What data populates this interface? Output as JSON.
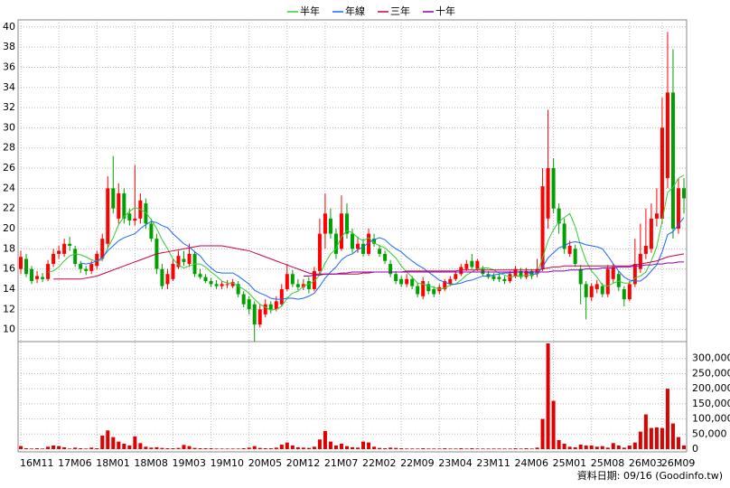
{
  "chart_data": {
    "type": "candlestick",
    "legend": [
      "半年",
      "年線",
      "三年",
      "十年"
    ],
    "source_note": "資料日期: 09/16 (Goodinfo.tw)",
    "categories": [
      "16M11",
      null,
      null,
      null,
      null,
      null,
      null,
      "17M06",
      null,
      null,
      null,
      null,
      null,
      null,
      "18M01",
      null,
      null,
      null,
      null,
      null,
      null,
      "18M08",
      null,
      null,
      null,
      null,
      null,
      null,
      "19M03",
      null,
      null,
      null,
      null,
      null,
      null,
      "19M10",
      null,
      null,
      null,
      null,
      null,
      null,
      "20M05",
      null,
      null,
      null,
      null,
      null,
      null,
      "20M12",
      null,
      null,
      null,
      null,
      null,
      null,
      "21M07",
      null,
      null,
      null,
      null,
      null,
      null,
      "22M02",
      null,
      null,
      null,
      null,
      null,
      null,
      "22M09",
      null,
      null,
      null,
      null,
      null,
      null,
      "23M04",
      null,
      null,
      null,
      null,
      null,
      null,
      "23M11",
      null,
      null,
      null,
      null,
      null,
      null,
      "24M06",
      null,
      null,
      null,
      null,
      null,
      null,
      "25M01",
      null,
      null,
      null,
      null,
      null,
      null,
      "25M08",
      null,
      null,
      null,
      null,
      null,
      null,
      "26M03",
      null,
      null,
      null,
      null,
      null,
      "26M09",
      null,
      null,
      null,
      null
    ],
    "open": [
      16,
      17,
      16,
      15,
      15.2,
      15,
      16.5,
      17.5,
      17.5,
      18.5,
      18,
      16.5,
      16,
      15.8,
      16.3,
      17,
      18.5,
      24,
      21,
      23.5,
      21.5,
      20.8,
      21,
      22.5,
      20.5,
      19,
      16,
      14.5,
      15,
      16.2,
      17,
      16.5,
      17.5,
      15.5,
      15.2,
      14.8,
      14.5,
      14.3,
      14.5,
      14.3,
      14.5,
      13.5,
      13,
      12.5,
      10.5,
      11.5,
      12.5,
      12,
      12.5,
      14,
      15.5,
      14.5,
      14.2,
      14.8,
      14,
      15.8,
      19.5,
      21,
      19.5,
      18,
      21.5,
      19.5,
      18,
      18.5,
      17.5,
      19,
      18,
      17.5,
      16.5,
      15.5,
      15,
      14.5,
      15,
      14.3,
      13.3,
      14.5,
      14,
      13.8,
      14,
      14.5,
      15,
      15.5,
      16,
      16.8,
      16,
      16,
      15.5,
      15.3,
      15.2,
      15,
      14.8,
      15.3,
      15.8,
      15.2,
      15.8,
      15.5,
      16,
      21,
      26,
      22,
      20.5,
      17.5,
      18,
      16,
      14.5,
      13.2,
      14,
      14.3,
      13.5,
      15,
      15.5,
      14,
      13,
      14.5,
      16,
      17.5,
      18,
      21,
      21,
      25,
      33.5,
      20,
      24
    ],
    "high": [
      17.8,
      17.5,
      16.3,
      15.8,
      15.6,
      16.9,
      18,
      18.3,
      19,
      19.2,
      18.3,
      16.8,
      16.3,
      16.8,
      17.8,
      19.5,
      25.2,
      27.2,
      24.5,
      24,
      22,
      26.3,
      23.5,
      23,
      21,
      19.5,
      16.5,
      16,
      17,
      17.8,
      17.8,
      18.5,
      17.8,
      16,
      15.5,
      15.1,
      14.9,
      14.8,
      14.9,
      15,
      14.8,
      13.8,
      13.3,
      12.8,
      12.5,
      13,
      12.8,
      13.3,
      14.5,
      16.5,
      15.9,
      15,
      15,
      15.2,
      16.2,
      21,
      23.5,
      22,
      20,
      23.3,
      22.5,
      20,
      19.2,
      19,
      20,
      19.5,
      18.4,
      17.8,
      16.9,
      15.8,
      15.3,
      15.5,
      15.3,
      14.6,
      15.2,
      14.8,
      14.3,
      14.5,
      15,
      15.3,
      15.8,
      16.5,
      16.9,
      17.5,
      17,
      16.3,
      15.8,
      15.6,
      15.5,
      15.3,
      15.8,
      16.3,
      16.1,
      16.1,
      16,
      17,
      26,
      31.8,
      27,
      22.5,
      21,
      18.8,
      18.4,
      16.4,
      14.8,
      14.6,
      14.9,
      14.6,
      16.4,
      16.5,
      15.8,
      14.3,
      14.8,
      19,
      20.5,
      22,
      22.5,
      24,
      33,
      39.5,
      37.8,
      25,
      25
    ],
    "low": [
      15.5,
      15.2,
      14.5,
      14.6,
      14.7,
      14.8,
      16.2,
      17,
      17.2,
      17.8,
      16.2,
      15.6,
      15.4,
      15.5,
      16,
      16.8,
      18,
      21.5,
      20.5,
      20.5,
      20.3,
      20.3,
      20.5,
      20,
      18.7,
      15.5,
      14,
      14,
      14.8,
      16,
      16.3,
      16.2,
      15.2,
      15,
      14.6,
      14.2,
      14,
      14,
      14.1,
      14.1,
      13.2,
      12.2,
      11.5,
      8.8,
      10.2,
      11.2,
      11.6,
      11.8,
      12.3,
      13.8,
      14.2,
      13.9,
      13.9,
      13.6,
      13.8,
      15.5,
      18,
      19,
      17,
      17.8,
      19,
      17.6,
      17.6,
      17.2,
      17.3,
      18.2,
      17.2,
      16.5,
      15.2,
      14.5,
      14.2,
      14.2,
      14,
      13.2,
      13,
      13.5,
      13.2,
      13.5,
      13.8,
      14.3,
      14.8,
      15.3,
      15.8,
      16,
      15.8,
      15.3,
      15,
      14.8,
      14.7,
      14.5,
      14.6,
      15.1,
      15,
      15,
      15,
      15.2,
      15.8,
      20,
      21.5,
      19.5,
      17.5,
      17.2,
      16.2,
      12.5,
      11,
      12.8,
      13.6,
      13.2,
      13.2,
      14.6,
      13.8,
      12.3,
      12.8,
      14.2,
      15.6,
      17,
      17.6,
      20.2,
      20.5,
      24,
      19,
      19.5,
      21.5
    ],
    "close": [
      17.2,
      15.5,
      14.8,
      15.3,
      15,
      16.5,
      17.5,
      17.8,
      18.5,
      18.3,
      16.5,
      16,
      15.8,
      16.5,
      17.5,
      19,
      24,
      22,
      23.5,
      21,
      20.8,
      21,
      22.8,
      20.5,
      19,
      16,
      14.3,
      15.5,
      16.5,
      17.3,
      16.7,
      17.5,
      15.5,
      15.2,
      14.8,
      14.5,
      14.3,
      14.5,
      14.5,
      14.7,
      13.5,
      12.5,
      12,
      10.5,
      12,
      12.5,
      12,
      12.8,
      14,
      15.5,
      14.5,
      14.2,
      14.5,
      14,
      15.8,
      19.5,
      21.5,
      19.5,
      17.5,
      21.5,
      19.5,
      18,
      18.5,
      17.5,
      19.5,
      18.5,
      17.5,
      16.8,
      15.5,
      14.8,
      14.5,
      15,
      14.3,
      13.5,
      14.8,
      13.8,
      13.5,
      14.2,
      14.8,
      15,
      15.5,
      16.2,
      16.5,
      16.2,
      16.8,
      15.5,
      15.2,
      15,
      15,
      14.8,
      15.5,
      16,
      15.2,
      15.8,
      15.3,
      16,
      24.2,
      26,
      22,
      20.5,
      18,
      18.3,
      16.5,
      14.5,
      13.2,
      14.3,
      14.5,
      13.5,
      16,
      16.2,
      14.2,
      13,
      14.5,
      16.5,
      17.5,
      18.3,
      21,
      21.5,
      30,
      33.5,
      20,
      24,
      23
    ],
    "up_color": "#ff0000",
    "down_color": "#00a000",
    "ma": [
      {
        "name": "半年",
        "color": "#33cc33",
        "values": [
          null,
          null,
          null,
          null,
          null,
          15.7,
          15.8,
          16.2,
          16.8,
          17.3,
          17.5,
          17.4,
          17.2,
          16.9,
          16.8,
          16.9,
          18.1,
          19.1,
          20.4,
          21.2,
          21.7,
          22.1,
          21.9,
          21.6,
          20.9,
          20.0,
          18.9,
          18.0,
          17.0,
          16.4,
          16.1,
          16.3,
          16.5,
          16.5,
          16.2,
          15.7,
          15.3,
          14.8,
          14.6,
          14.6,
          14.3,
          14.0,
          13.6,
          13.0,
          12.5,
          12.2,
          11.9,
          12.0,
          12.3,
          13.1,
          13.6,
          13.8,
          14.3,
          14.5,
          14.8,
          15.4,
          16.6,
          17.5,
          18.0,
          19.2,
          19.8,
          19.6,
          19.1,
          18.8,
          19.1,
          18.6,
          18.3,
          18.1,
          17.6,
          17.1,
          16.3,
          15.7,
          15.2,
          14.6,
          14.5,
          14.3,
          14.2,
          14.0,
          14.1,
          14.4,
          14.5,
          14.9,
          15.4,
          15.7,
          16.0,
          16.1,
          16.1,
          15.9,
          15.6,
          15.4,
          15.2,
          15.3,
          15.3,
          15.4,
          15.4,
          15.6,
          17.1,
          18.8,
          19.9,
          20.7,
          21.1,
          21.5,
          20.2,
          18.3,
          16.8,
          15.8,
          15.2,
          14.4,
          14.3,
          14.6,
          14.8,
          14.6,
          14.6,
          15.1,
          15.3,
          15.7,
          16.8,
          18.2,
          20.8,
          23.6,
          24.1,
          25.0,
          25.3
        ]
      },
      {
        "name": "年線",
        "color": "#1a66ff",
        "values": [
          null,
          null,
          null,
          null,
          null,
          null,
          null,
          null,
          null,
          null,
          null,
          16.6,
          16.5,
          16.6,
          16.8,
          17.1,
          17.8,
          18.3,
          18.8,
          19.1,
          19.3,
          19.5,
          20.0,
          20.4,
          20.7,
          20.6,
          20.3,
          20.1,
          19.5,
          19.0,
          18.5,
          18.2,
          17.7,
          17.3,
          16.6,
          16.1,
          15.7,
          15.6,
          15.6,
          15.6,
          15.3,
          14.9,
          14.5,
          13.9,
          13.6,
          13.4,
          13.1,
          13.0,
          13.0,
          13.1,
          13.1,
          13.0,
          13.1,
          13.3,
          13.6,
          14.3,
          15.1,
          15.7,
          16.2,
          16.9,
          17.3,
          17.5,
          17.9,
          18.2,
          18.6,
          18.9,
          19.1,
          18.9,
          18.4,
          18.0,
          17.7,
          17.2,
          16.8,
          16.4,
          16.1,
          15.7,
          15.3,
          14.9,
          14.7,
          14.5,
          14.5,
          14.6,
          14.8,
          14.9,
          15.1,
          15.3,
          15.3,
          15.4,
          15.5,
          15.6,
          15.6,
          15.7,
          15.7,
          15.7,
          15.5,
          15.5,
          16.2,
          17.1,
          17.6,
          18.1,
          18.3,
          18.6,
          18.7,
          18.6,
          18.4,
          18.3,
          18.2,
          18.0,
          17.3,
          16.5,
          15.8,
          15.2,
          14.9,
          14.8,
          14.8,
          15.2,
          15.8,
          16.4,
          17.7,
          19.4,
          19.7,
          20.4,
          21.1
        ]
      },
      {
        "name": "三年",
        "color": "#cc0044",
        "values": [
          null,
          null,
          null,
          null,
          null,
          null,
          15.0,
          15.0,
          15.0,
          15.0,
          15.0,
          15.0,
          15.1,
          15.2,
          15.3,
          15.5,
          15.7,
          15.9,
          16.1,
          16.3,
          16.5,
          16.7,
          16.9,
          17.1,
          17.3,
          17.5,
          17.6,
          17.7,
          17.8,
          17.9,
          18.0,
          18.1,
          18.2,
          18.3,
          18.3,
          18.3,
          18.3,
          18.3,
          18.2,
          18.1,
          18.0,
          17.9,
          17.8,
          17.6,
          17.4,
          17.2,
          17.0,
          16.8,
          16.6,
          16.4,
          16.2,
          16.0,
          15.8,
          15.6,
          15.5,
          15.5,
          15.5,
          15.5,
          15.5,
          15.5,
          15.5,
          15.5,
          15.5,
          15.6,
          15.6,
          15.7,
          15.7,
          15.7,
          15.7,
          15.7,
          15.7,
          15.8,
          15.8,
          15.8,
          15.8,
          15.8,
          15.8,
          15.8,
          15.8,
          15.8,
          15.8,
          15.9,
          15.9,
          15.9,
          15.9,
          15.9,
          15.9,
          15.9,
          15.9,
          15.9,
          15.9,
          15.9,
          15.9,
          15.9,
          15.9,
          15.9,
          16.0,
          16.1,
          16.2,
          16.2,
          16.3,
          16.3,
          16.3,
          16.3,
          16.3,
          16.3,
          16.3,
          16.3,
          16.3,
          16.3,
          16.3,
          16.3,
          16.3,
          16.4,
          16.5,
          16.6,
          16.7,
          16.8,
          17.0,
          17.2,
          17.3,
          17.4,
          17.5
        ]
      },
      {
        "name": "十年",
        "color": "#8800aa",
        "values": [
          null,
          null,
          null,
          null,
          null,
          null,
          null,
          null,
          null,
          null,
          null,
          null,
          null,
          null,
          null,
          null,
          null,
          null,
          null,
          null,
          null,
          null,
          null,
          null,
          null,
          null,
          null,
          null,
          null,
          null,
          null,
          null,
          null,
          null,
          null,
          null,
          null,
          null,
          null,
          null,
          null,
          null,
          null,
          null,
          null,
          null,
          null,
          null,
          null,
          null,
          null,
          null,
          15.3,
          15.3,
          15.4,
          15.4,
          15.5,
          15.5,
          15.5,
          15.6,
          15.6,
          15.7,
          15.7,
          15.7,
          15.7,
          15.7,
          15.7,
          15.7,
          15.7,
          15.7,
          15.7,
          15.7,
          15.7,
          15.7,
          15.7,
          15.7,
          15.7,
          15.7,
          15.7,
          15.7,
          15.7,
          15.7,
          15.7,
          15.7,
          15.7,
          15.7,
          15.7,
          15.7,
          15.7,
          15.7,
          15.7,
          15.7,
          15.7,
          15.7,
          15.7,
          15.7,
          15.7,
          15.7,
          15.8,
          15.8,
          15.8,
          15.9,
          15.9,
          15.9,
          16.0,
          16.0,
          16.0,
          16.1,
          16.1,
          16.1,
          16.2,
          16.2,
          16.2,
          16.3,
          16.3,
          16.4,
          16.4,
          16.5,
          16.5,
          16.6,
          16.6,
          16.7,
          16.7
        ]
      }
    ],
    "ylim": [
      8.8,
      40.7
    ],
    "yticks": [
      10,
      12,
      14,
      16,
      18,
      20,
      22,
      24,
      26,
      28,
      30,
      32,
      34,
      36,
      38,
      40
    ],
    "grid": true,
    "volume": {
      "color": "#e00000",
      "values": [
        10000,
        3000,
        2000,
        3000,
        2000,
        8000,
        12000,
        10000,
        6000,
        2000,
        5000,
        3000,
        2000,
        5000,
        3000,
        45000,
        62000,
        40000,
        25000,
        18000,
        12000,
        42000,
        20000,
        8000,
        5000,
        6000,
        4000,
        3000,
        3000,
        4000,
        14000,
        10000,
        4000,
        3000,
        3000,
        3000,
        2000,
        2000,
        2000,
        2000,
        2000,
        3000,
        5000,
        10000,
        4000,
        3000,
        3000,
        5000,
        15000,
        22000,
        12000,
        6000,
        5000,
        4000,
        8000,
        32000,
        60000,
        25000,
        12000,
        18000,
        10000,
        6000,
        5000,
        25000,
        22000,
        8000,
        4000,
        3000,
        5000,
        4000,
        3000,
        2000,
        2000,
        2000,
        3000,
        2000,
        2000,
        2000,
        3000,
        2000,
        2000,
        3000,
        2000,
        3000,
        2000,
        2000,
        2000,
        2000,
        2000,
        2000,
        2000,
        3000,
        2000,
        3000,
        2000,
        5000,
        100000,
        350000,
        160000,
        30000,
        18000,
        8000,
        6000,
        15000,
        12000,
        12000,
        8000,
        10000,
        5000,
        20000,
        12000,
        5000,
        12000,
        22000,
        58000,
        115000,
        70000,
        72000,
        70000,
        200000,
        85000,
        40000,
        12000
      ],
      "ylim": [
        0,
        350000
      ],
      "yticks": [
        0,
        {
          "value": 50000,
          "label": "50,000"
        },
        {
          "value": 100000,
          "label": "100,000"
        },
        {
          "value": 150000,
          "label": "150,000"
        },
        {
          "value": 200000,
          "label": "200,000"
        },
        {
          "value": 250000,
          "label": "250,000"
        },
        {
          "value": 300000,
          "label": "300,000"
        }
      ]
    }
  }
}
